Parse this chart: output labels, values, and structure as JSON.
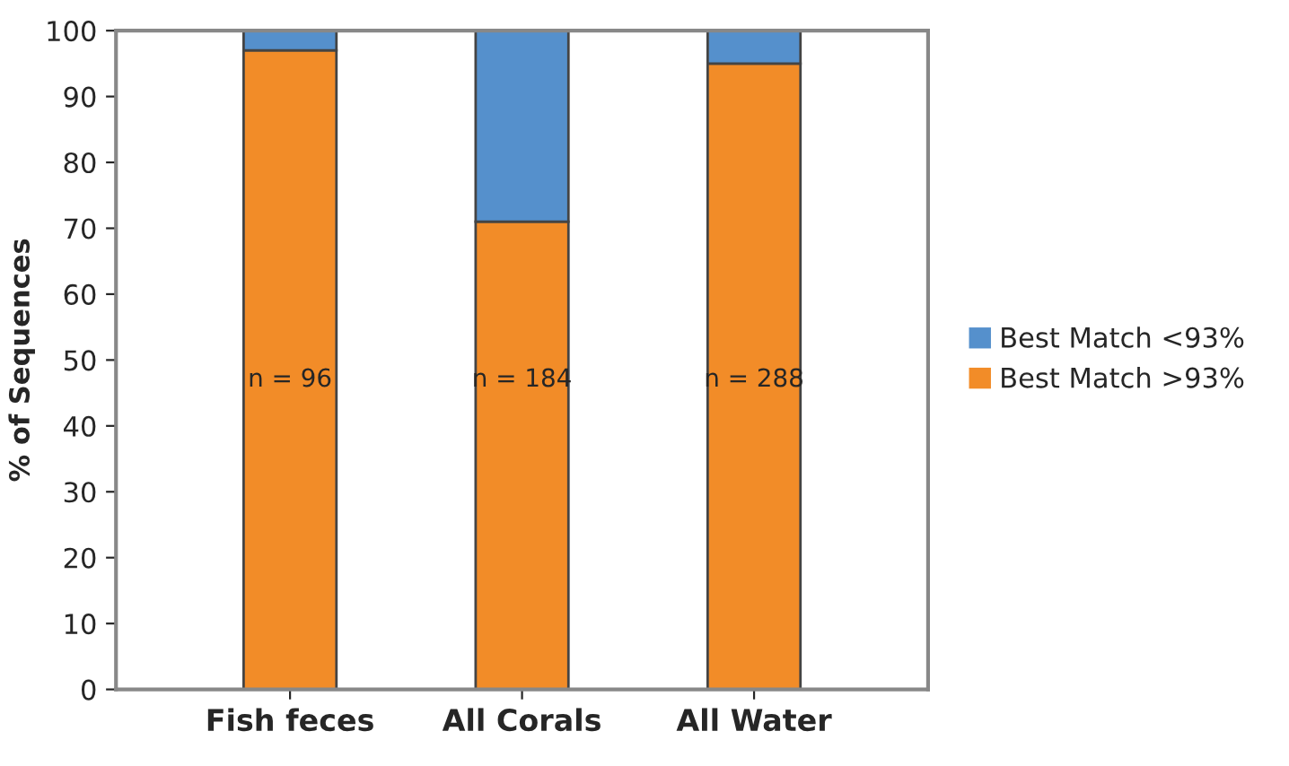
{
  "chart_data": {
    "type": "bar",
    "stacked": true,
    "ylabel": "% of Sequences",
    "categories": [
      "Fish feces",
      "All Corals",
      "All Water"
    ],
    "series": [
      {
        "name": "Best Match >93%",
        "color": "#f28c28",
        "values": [
          97,
          71,
          95
        ]
      },
      {
        "name": "Best Match <93%",
        "color": "#5590cc",
        "values": [
          3,
          29,
          5
        ]
      }
    ],
    "ylim": [
      0,
      100
    ],
    "yticks": [
      0,
      10,
      20,
      30,
      40,
      50,
      60,
      70,
      80,
      90,
      100
    ],
    "annotations": [
      "n = 96",
      "n = 184",
      "n = 288"
    ],
    "grid": false,
    "legend": "right"
  }
}
